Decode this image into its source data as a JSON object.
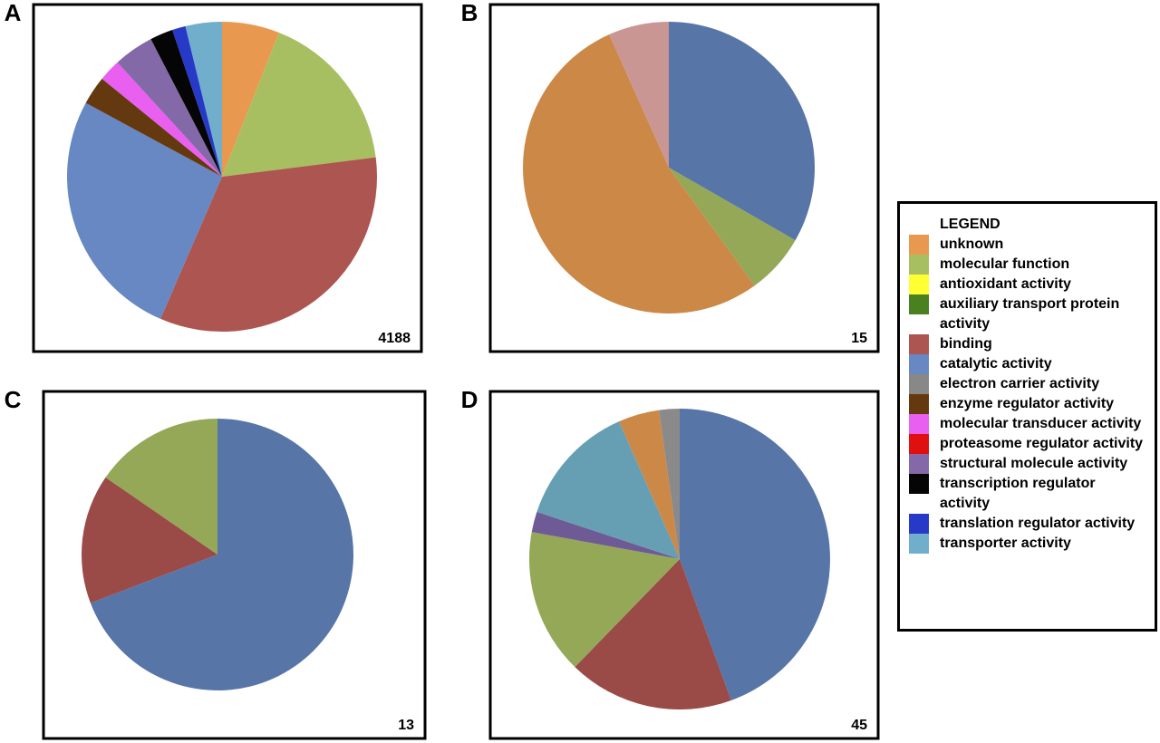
{
  "chart_data": [
    {
      "type": "pie",
      "panel": "A",
      "n": 4188,
      "values": [
        6,
        17,
        33.5,
        26.4,
        3,
        2.3,
        4.2,
        2.4,
        1.4,
        3.8
      ],
      "colors": [
        "#e8994f",
        "#a8bf61",
        "#ad5550",
        "#6788c2",
        "#653910",
        "#e95ff0",
        "#8369a8",
        "#050505",
        "#2639c7",
        "#70aecb"
      ]
    },
    {
      "type": "pie",
      "panel": "B",
      "n": 15,
      "values": [
        33.3,
        6.7,
        53.3,
        6.7
      ],
      "colors": [
        "#5875a8",
        "#94a857",
        "#cc8846",
        "#c99694"
      ]
    },
    {
      "type": "pie",
      "panel": "C",
      "n": 13,
      "values": [
        69.2,
        15.4,
        15.4
      ],
      "colors": [
        "#5875a8",
        "#9a4a47",
        "#94a857"
      ]
    },
    {
      "type": "pie",
      "panel": "D",
      "n": 45,
      "values": [
        44.4,
        17.8,
        15.6,
        2.2,
        13.3,
        4.4,
        2.2
      ],
      "colors": [
        "#5875a8",
        "#9a4a47",
        "#94a857",
        "#6e5a94",
        "#669fb4",
        "#cc8846",
        "#8a8a8a"
      ]
    }
  ],
  "legend": {
    "title": "LEGEND",
    "categories": [
      "unknown",
      "molecular function",
      "antioxidant activity",
      "auxiliary transport protein activity",
      "binding",
      "catalytic activity",
      "electron carrier activity",
      "enzyme regulator activity",
      "molecular transducer activity",
      "proteasome regulator activity",
      "structural molecule activity",
      "transcription regulator activity",
      "translation regulator activity",
      "transporter activity"
    ],
    "colors": [
      "#e8994f",
      "#a8bf61",
      "#ffff33",
      "#4a8020",
      "#ad5550",
      "#6788c2",
      "#888888",
      "#653910",
      "#e95ff0",
      "#e01010",
      "#8369a8",
      "#050505",
      "#2639c7",
      "#70aecb"
    ]
  }
}
